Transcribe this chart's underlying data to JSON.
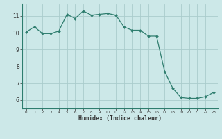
{
  "x": [
    0,
    1,
    2,
    3,
    4,
    5,
    6,
    7,
    8,
    9,
    10,
    11,
    12,
    13,
    14,
    15,
    16,
    17,
    18,
    19,
    20,
    21,
    22,
    23
  ],
  "y": [
    10.05,
    10.35,
    9.95,
    9.95,
    10.1,
    11.1,
    10.85,
    11.3,
    11.05,
    11.1,
    11.15,
    11.05,
    10.35,
    10.15,
    10.15,
    9.8,
    9.8,
    7.7,
    6.7,
    6.15,
    6.1,
    6.1,
    6.2,
    6.45
  ],
  "xlabel": "Humidex (Indice chaleur)",
  "ylim": [
    5.5,
    11.7
  ],
  "xlim": [
    -0.5,
    23.5
  ],
  "yticks": [
    6,
    7,
    8,
    9,
    10,
    11
  ],
  "xtick_labels": [
    "0",
    "1",
    "2",
    "3",
    "4",
    "5",
    "6",
    "7",
    "8",
    "9",
    "10",
    "11",
    "12",
    "13",
    "14",
    "15",
    "16",
    "17",
    "18",
    "19",
    "20",
    "21",
    "22",
    "23"
  ],
  "line_color": "#2e7d6e",
  "marker_color": "#2e7d6e",
  "bg_color": "#cce8e8",
  "grid_color": "#aacccc",
  "spine_color": "#2e7d6e"
}
